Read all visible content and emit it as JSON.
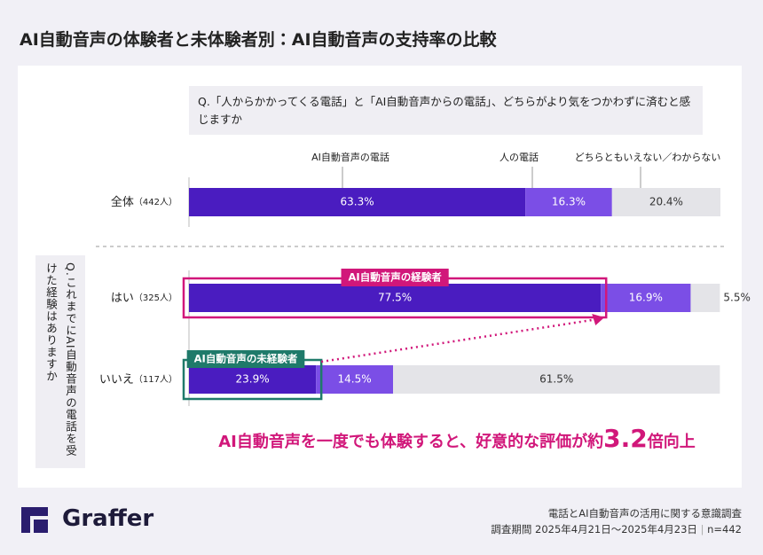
{
  "chart_data": {
    "type": "stacked-bar-horizontal",
    "title": "AI自動音声の体験者と未体験者別：AI自動音声の支持率の比較",
    "question": "Q.「人からかかってくる電話」と「AI自動音声からの電話」、どちらがより気をつかわずに済むと感じますか",
    "side_question": "Q.これまでにAI自動音声の電話を受けた経験はありますか",
    "categories": [
      "全体",
      "はい",
      "いいえ"
    ],
    "category_notes": [
      "（442人）",
      "（325人）",
      "（117人）"
    ],
    "series": [
      {
        "name": "AI自動音声の電話",
        "color": "#4a1cc0",
        "values": [
          63.3,
          77.5,
          23.9
        ],
        "value_labels": [
          "63.3%",
          "77.5%",
          "23.9%"
        ]
      },
      {
        "name": "人の電話",
        "color": "#7b4ee6",
        "values": [
          16.3,
          16.9,
          14.5
        ],
        "value_labels": [
          "16.3%",
          "16.9%",
          "14.5%"
        ]
      },
      {
        "name": "どちらともいえない／わからない",
        "color": "#e4e4e8",
        "values": [
          20.4,
          5.5,
          61.5
        ],
        "value_labels": [
          "20.4%",
          "5.5%",
          "61.5%"
        ]
      }
    ],
    "xlim": [
      0,
      100
    ],
    "callouts": [
      "AI自動音声の経験者",
      "AI自動音声の未経験者"
    ],
    "conclusion_prefix": "AI自動音声を一度でも体験すると、好意的な評価が約",
    "conclusion_value": 3.2,
    "conclusion_suffix": "倍向上"
  },
  "footer": {
    "logo": "Graffer",
    "survey": "電話とAI自動音声の活用に関する意識調査",
    "period": "調査期間 2025年4月21日～2025年4月23日",
    "sample": "n=442"
  }
}
